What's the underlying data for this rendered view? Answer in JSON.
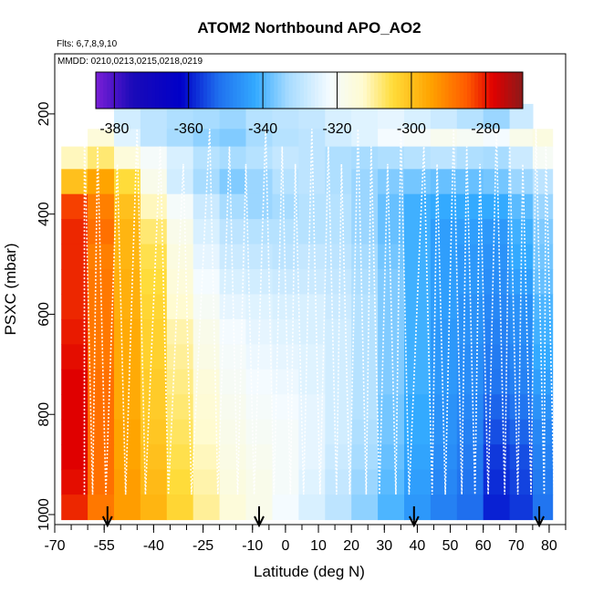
{
  "chart_data": {
    "type": "heatmap",
    "title": "ATOM2 Northbound APO_AO2",
    "flights_note": "Flts: 6,7,8,9,10",
    "dates_note": "MMDD: 0210,0213,0215,0218,0219",
    "xlabel": "Latitude (deg N)",
    "ylabel": "PSXC (mbar)",
    "xlim": [
      -70,
      85
    ],
    "ylim": [
      1020,
      80
    ],
    "x_ticks": [
      -70,
      -55,
      -40,
      -25,
      -10,
      0,
      10,
      20,
      30,
      40,
      50,
      60,
      70,
      80
    ],
    "x_tick_labels": [
      "-70",
      "-55",
      "-40",
      "-25",
      "-10",
      "0",
      "10",
      "20",
      "30",
      "40",
      "50",
      "60",
      "70",
      "80"
    ],
    "y_ticks": [
      200,
      400,
      600,
      800,
      1000
    ],
    "y_tick_labels": [
      "200",
      "400",
      "600",
      "800",
      "1000"
    ],
    "colorbar": {
      "range": [
        -385,
        -270
      ],
      "ticks": [
        -380,
        -360,
        -340,
        -320,
        -300,
        -280
      ],
      "tick_labels": [
        "-380",
        "-360",
        "-340",
        "-320",
        "-300",
        "-280"
      ],
      "stops": [
        {
          "v": -385,
          "c": "#7a1fd6"
        },
        {
          "v": -375,
          "c": "#1a0ab8"
        },
        {
          "v": -362,
          "c": "#0000c8"
        },
        {
          "v": -352,
          "c": "#1f6fee"
        },
        {
          "v": -342,
          "c": "#33aaff"
        },
        {
          "v": -333,
          "c": "#a8dcff"
        },
        {
          "v": -322,
          "c": "#f4fbff"
        },
        {
          "v": -313,
          "c": "#fffbd0"
        },
        {
          "v": -305,
          "c": "#ffdc3a"
        },
        {
          "v": -295,
          "c": "#ffa400"
        },
        {
          "v": -285,
          "c": "#ff5a00"
        },
        {
          "v": -278,
          "c": "#e00000"
        },
        {
          "v": -270,
          "c": "#8b1a1a"
        }
      ]
    },
    "arrow_latitudes": [
      -54,
      -8,
      39,
      77
    ],
    "pressure_bands": [
      180,
      230,
      265,
      310,
      360,
      410,
      460,
      510,
      560,
      610,
      660,
      710,
      760,
      810,
      860,
      910,
      960,
      1010
    ],
    "latitude_bands": [
      -68,
      -60,
      -52,
      -44,
      -36,
      -28,
      -20,
      -12,
      -4,
      4,
      12,
      20,
      28,
      36,
      44,
      52,
      60,
      68,
      75,
      81
    ],
    "values": [
      [
        null,
        null,
        -327,
        -330,
        -332,
        -333,
        -334,
        -331,
        -330,
        -329,
        -326,
        -325,
        -324,
        -326,
        -328,
        -331,
        -334,
        -328,
        null
      ],
      [
        null,
        -315,
        -325,
        -330,
        -333,
        -335,
        -336,
        -333,
        -331,
        -330,
        -327,
        -325,
        -322,
        -321,
        -319,
        -320,
        -322,
        -318,
        -316
      ],
      [
        -312,
        -308,
        -315,
        -321,
        -326,
        -331,
        -333,
        -331,
        -329,
        -330,
        -332,
        -333,
        -332,
        -331,
        -330,
        -332,
        -333,
        -328,
        -320
      ],
      [
        -300,
        -295,
        -305,
        -318,
        -327,
        -333,
        -336,
        -334,
        -331,
        -330,
        -332,
        -334,
        -336,
        -337,
        -338,
        -338,
        -337,
        -334,
        -330
      ],
      [
        -283,
        -290,
        -300,
        -312,
        -321,
        -328,
        -333,
        -334,
        -333,
        -331,
        -331,
        -334,
        -338,
        -341,
        -342,
        -342,
        -342,
        -339,
        -334
      ],
      [
        -281,
        -288,
        -298,
        -308,
        -318,
        -326,
        -330,
        -331,
        -331,
        -331,
        -331,
        -334,
        -338,
        -341,
        -344,
        -344,
        -345,
        -341,
        -336
      ],
      [
        -281,
        -290,
        -298,
        -306,
        -316,
        -324,
        -328,
        -329,
        -330,
        -329,
        -330,
        -333,
        -337,
        -341,
        -344,
        -345,
        -346,
        -342,
        -337
      ],
      [
        -281,
        -289,
        -297,
        -305,
        -315,
        -322,
        -326,
        -327,
        -328,
        -328,
        -329,
        -332,
        -336,
        -341,
        -344,
        -345,
        -347,
        -344,
        -338
      ],
      [
        -281,
        -289,
        -297,
        -304,
        -313,
        -320,
        -324,
        -325,
        -326,
        -326,
        -328,
        -331,
        -336,
        -341,
        -344,
        -346,
        -348,
        -346,
        -340
      ],
      [
        -280,
        -289,
        -296,
        -303,
        -311,
        -318,
        -322,
        -324,
        -325,
        -326,
        -327,
        -331,
        -336,
        -341,
        -345,
        -346,
        -349,
        -347,
        -341
      ],
      [
        -279,
        -289,
        -296,
        -303,
        -310,
        -317,
        -321,
        -323,
        -324,
        -325,
        -327,
        -331,
        -336,
        -341,
        -345,
        -347,
        -350,
        -348,
        -342
      ],
      [
        -278,
        -288,
        -296,
        -302,
        -309,
        -315,
        -320,
        -322,
        -323,
        -325,
        -327,
        -331,
        -336,
        -341,
        -345,
        -347,
        -351,
        -349,
        -344
      ],
      [
        -278,
        -288,
        -296,
        -302,
        -308,
        -314,
        -319,
        -321,
        -322,
        -324,
        -327,
        -331,
        -337,
        -342,
        -346,
        -348,
        -353,
        -351,
        -346
      ],
      [
        -278,
        -288,
        -295,
        -301,
        -307,
        -313,
        -318,
        -320,
        -321,
        -324,
        -327,
        -332,
        -337,
        -342,
        -346,
        -349,
        -355,
        -353,
        -348
      ],
      [
        -278,
        -288,
        -295,
        -300,
        -306,
        -312,
        -317,
        -319,
        -321,
        -324,
        -328,
        -333,
        -338,
        -343,
        -347,
        -350,
        -357,
        -355,
        -349
      ],
      [
        -279,
        -288,
        -294,
        -299,
        -305,
        -311,
        -316,
        -318,
        -321,
        -325,
        -329,
        -334,
        -339,
        -344,
        -348,
        -351,
        -358,
        -356,
        -350
      ],
      [
        -281,
        -289,
        -294,
        -298,
        -304,
        -310,
        -315,
        -318,
        -322,
        -326,
        -330,
        -335,
        -340,
        -345,
        -349,
        -352,
        -359,
        -357,
        -351
      ]
    ]
  }
}
